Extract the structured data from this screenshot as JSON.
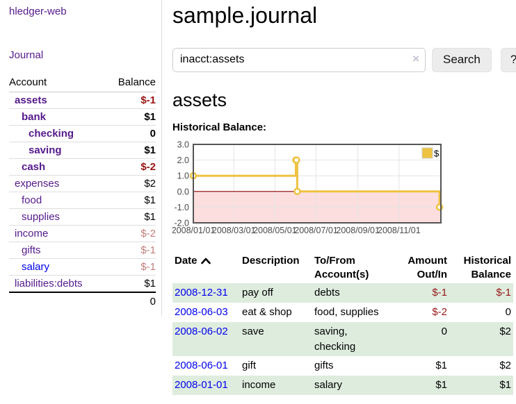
{
  "app": {
    "brand": "hledger-web",
    "nav": {
      "journal": "Journal"
    }
  },
  "sidebar": {
    "header": {
      "account": "Account",
      "balance": "Balance"
    },
    "accounts": [
      {
        "name": "assets",
        "balance": "$-1"
      },
      {
        "name": "bank",
        "balance": "$1"
      },
      {
        "name": "checking",
        "balance": "0"
      },
      {
        "name": "saving",
        "balance": "$1"
      },
      {
        "name": "cash",
        "balance": "$-2"
      },
      {
        "name": "expenses",
        "balance": "$2"
      },
      {
        "name": "food",
        "balance": "$1"
      },
      {
        "name": "supplies",
        "balance": "$1"
      },
      {
        "name": "income",
        "balance": "$-2"
      },
      {
        "name": "gifts",
        "balance": "$-1"
      },
      {
        "name": "salary",
        "balance": "$-1"
      },
      {
        "name": "liabilities:debts",
        "balance": "$1"
      }
    ],
    "total": "0"
  },
  "header": {
    "title": "sample.journal"
  },
  "search": {
    "value": "inacct:assets",
    "clear_icon": "×",
    "button_label": "Search",
    "help_label": "?"
  },
  "main": {
    "account_title": "assets",
    "chart_label": "Historical Balance:"
  },
  "chart_data": {
    "type": "line",
    "step": true,
    "title": "Historical Balance",
    "x_min": "2008-01-01",
    "x_max": "2009-01-02",
    "ylim": [
      -2,
      3
    ],
    "y_ticks": [
      3,
      2,
      1,
      0,
      -1,
      -2
    ],
    "x_ticks": [
      {
        "date": "2008-01-01",
        "label": "2008/01/01"
      },
      {
        "date": "2008-03-01",
        "label": "2008/03/01"
      },
      {
        "date": "2008-05-01",
        "label": "2008/05/01"
      },
      {
        "date": "2008-07-01",
        "label": "2008/07/01"
      },
      {
        "date": "2008-09-01",
        "label": "2008/09/01"
      },
      {
        "date": "2008-11-01",
        "label": "2008/11/01"
      }
    ],
    "series": [
      {
        "name": "$",
        "color": "#edc240",
        "points": [
          [
            "2008-01-01",
            1
          ],
          [
            "2008-06-01",
            2
          ],
          [
            "2008-06-02",
            2
          ],
          [
            "2008-06-03",
            0
          ],
          [
            "2008-12-31",
            -1
          ]
        ]
      }
    ],
    "legend_label": "$",
    "legend_position": "top-right",
    "grid": true,
    "colors": {
      "negative_region_fill": "#fcdede",
      "zero_line": "#8b0000",
      "grid_line": "#e4e4e4",
      "plot_border": "#545454",
      "tick_label": "#545454",
      "marker_fill": "#ffffff"
    }
  },
  "register": {
    "headers": {
      "date": "Date",
      "description": "Description",
      "tofrom_line1": "To/From",
      "tofrom_line2": "Account(s)",
      "amount_line1": "Amount",
      "amount_line2": "Out/In",
      "hist_line1": "Historical",
      "hist_line2": "Balance"
    },
    "rows": [
      {
        "date": "2008-12-31",
        "description": "pay off",
        "accounts": "debts",
        "amount": "$-1",
        "balance": "$-1"
      },
      {
        "date": "2008-06-03",
        "description": "eat & shop",
        "accounts": "food, supplies",
        "amount": "$-2",
        "balance": "0"
      },
      {
        "date": "2008-06-02",
        "description": "save",
        "accounts": "saving, checking",
        "amount": "0",
        "balance": "$2"
      },
      {
        "date": "2008-06-01",
        "description": "gift",
        "accounts": "gifts",
        "amount": "$1",
        "balance": "$2"
      },
      {
        "date": "2008-01-01",
        "description": "income",
        "accounts": "salary",
        "amount": "$1",
        "balance": "$1"
      }
    ]
  }
}
